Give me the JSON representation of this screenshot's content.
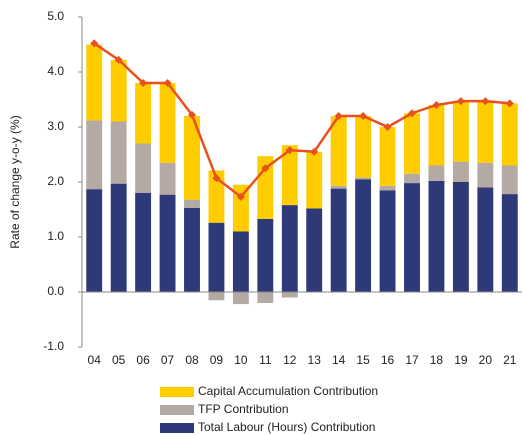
{
  "chart_data": {
    "type": "stacked_bar_line",
    "y_label": "Rate of change y-o-y (%)",
    "categories": [
      "04",
      "05",
      "06",
      "07",
      "08",
      "09",
      "10",
      "11",
      "12",
      "13",
      "14",
      "15",
      "16",
      "17",
      "18",
      "19",
      "20",
      "21"
    ],
    "series": [
      {
        "name": "Total Labour (Hours) Contribution",
        "color": "#2e3a78",
        "values": [
          1.87,
          1.97,
          1.8,
          1.77,
          1.53,
          1.26,
          1.1,
          1.33,
          1.58,
          1.52,
          1.88,
          2.05,
          1.85,
          1.98,
          2.02,
          2.0,
          1.9,
          1.78
        ]
      },
      {
        "name": "TFP Contribution",
        "color": "#b5aaa3",
        "values": [
          1.25,
          1.13,
          0.9,
          0.58,
          0.15,
          -0.15,
          -0.22,
          -0.2,
          -0.1,
          0.0,
          0.05,
          0.03,
          0.08,
          0.17,
          0.28,
          0.37,
          0.45,
          0.52
        ]
      },
      {
        "name": "Capital Accumulation Contribution",
        "color": "#ffcc00",
        "values": [
          1.38,
          1.12,
          1.1,
          1.45,
          1.52,
          0.95,
          0.85,
          1.14,
          1.09,
          1.03,
          1.27,
          1.12,
          1.07,
          1.1,
          1.1,
          1.1,
          1.12,
          1.13
        ]
      }
    ],
    "total_line": {
      "color": "#e8501e",
      "values": [
        4.52,
        4.22,
        3.8,
        3.8,
        3.22,
        2.07,
        1.73,
        2.25,
        2.58,
        2.55,
        3.2,
        3.2,
        3.0,
        3.25,
        3.4,
        3.47,
        3.47,
        3.43
      ]
    },
    "ylim": [
      -1,
      5
    ],
    "yticks": [
      {
        "value": -1,
        "label": "-1.0"
      },
      {
        "value": 0,
        "label": "0.0"
      },
      {
        "value": 1,
        "label": "1.0"
      },
      {
        "value": 2,
        "label": "2.0"
      },
      {
        "value": 3,
        "label": "3.0"
      },
      {
        "value": 4,
        "label": "4.0"
      },
      {
        "value": 5,
        "label": "5.0"
      }
    ]
  }
}
